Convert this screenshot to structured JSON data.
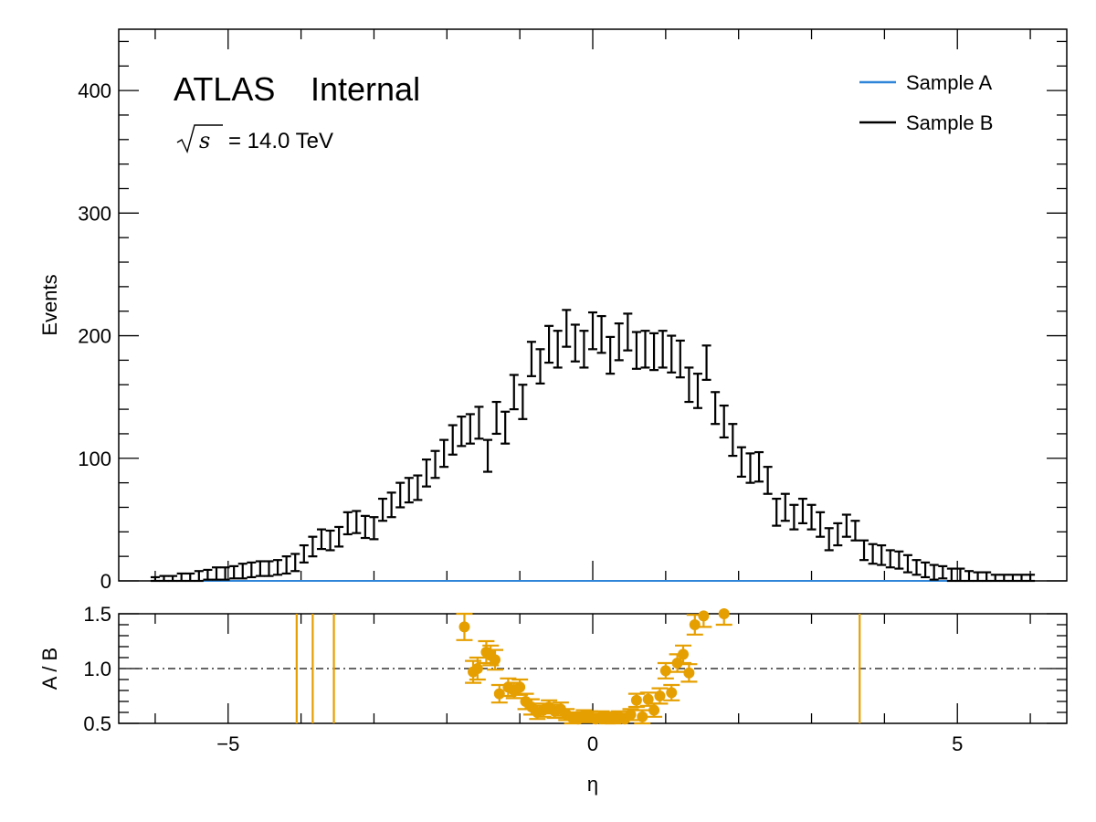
{
  "chart_data": {
    "type": "scatter",
    "xlabel": "η",
    "main": {
      "ylabel": "Events",
      "xlim": [
        -6.5,
        6.5
      ],
      "ylim": [
        0,
        450
      ],
      "yticks": [
        0,
        100,
        200,
        300,
        400
      ],
      "experiment": "ATLAS",
      "status": "Internal",
      "energy_symbol": "s",
      "energy_text": "= 14.0 TeV",
      "series": [
        {
          "name": "Sample A",
          "color": "#2f86d8",
          "kind": "step",
          "x": [
            -6.0,
            6.0
          ],
          "y": [
            0,
            0
          ]
        },
        {
          "name": "Sample B",
          "color": "#000000",
          "kind": "errorbar",
          "x": [
            -6.0,
            -5.88,
            -5.76,
            -5.64,
            -5.52,
            -5.4,
            -5.28,
            -5.16,
            -5.04,
            -4.92,
            -4.8,
            -4.68,
            -4.56,
            -4.44,
            -4.32,
            -4.2,
            -4.08,
            -3.96,
            -3.84,
            -3.72,
            -3.6,
            -3.48,
            -3.36,
            -3.24,
            -3.12,
            -3.0,
            -2.88,
            -2.76,
            -2.64,
            -2.52,
            -2.4,
            -2.28,
            -2.16,
            -2.04,
            -1.92,
            -1.8,
            -1.68,
            -1.56,
            -1.44,
            -1.32,
            -1.2,
            -1.08,
            -0.96,
            -0.84,
            -0.72,
            -0.6,
            -0.48,
            -0.36,
            -0.24,
            -0.12,
            0.0,
            0.12,
            0.24,
            0.36,
            0.48,
            0.6,
            0.72,
            0.84,
            0.96,
            1.08,
            1.2,
            1.32,
            1.44,
            1.56,
            1.68,
            1.8,
            1.92,
            2.04,
            2.16,
            2.28,
            2.4,
            2.52,
            2.64,
            2.76,
            2.88,
            3.0,
            3.12,
            3.24,
            3.36,
            3.48,
            3.6,
            3.72,
            3.84,
            3.96,
            4.08,
            4.2,
            4.32,
            4.44,
            4.56,
            4.68,
            4.8,
            4.92,
            5.04,
            5.16,
            5.28,
            5.4,
            5.52,
            5.64,
            5.76,
            5.88,
            6.0
          ],
          "y": [
            1,
            2,
            2,
            3,
            3,
            4,
            5,
            6,
            6,
            7,
            8,
            9,
            10,
            10,
            11,
            13,
            15,
            22,
            28,
            34,
            33,
            36,
            47,
            48,
            44,
            43,
            58,
            62,
            70,
            74,
            76,
            88,
            95,
            104,
            115,
            122,
            124,
            129,
            102,
            133,
            125,
            154,
            146,
            181,
            175,
            193,
            189,
            206,
            194,
            189,
            204,
            201,
            184,
            195,
            203,
            188,
            189,
            187,
            189,
            185,
            181,
            160,
            155,
            178,
            141,
            130,
            115,
            97,
            92,
            93,
            82,
            56,
            60,
            52,
            57,
            52,
            46,
            34,
            38,
            45,
            41,
            25,
            22,
            21,
            18,
            17,
            14,
            11,
            9,
            7,
            7,
            5,
            5,
            4,
            3,
            3,
            2,
            2,
            2,
            2,
            2
          ],
          "yerr": [
            2,
            2,
            2,
            3,
            3,
            4,
            4,
            5,
            5,
            5,
            6,
            6,
            6,
            6,
            6,
            7,
            7,
            7,
            8,
            8,
            8,
            8,
            9,
            9,
            9,
            9,
            9,
            10,
            10,
            10,
            10,
            11,
            11,
            11,
            12,
            12,
            12,
            13,
            13,
            13,
            13,
            14,
            14,
            14,
            14,
            15,
            15,
            15,
            15,
            15,
            15,
            15,
            15,
            15,
            15,
            15,
            15,
            15,
            15,
            15,
            15,
            14,
            14,
            14,
            13,
            13,
            13,
            12,
            12,
            12,
            11,
            11,
            11,
            10,
            10,
            10,
            10,
            9,
            9,
            9,
            8,
            8,
            8,
            8,
            7,
            7,
            7,
            6,
            6,
            6,
            5,
            5,
            5,
            4,
            4,
            4,
            3,
            3,
            3,
            3,
            3
          ]
        }
      ],
      "legend": {
        "location": "top-right",
        "entries": [
          {
            "label": "Sample A",
            "color": "#2f86d8"
          },
          {
            "label": "Sample B",
            "color": "#000000"
          }
        ]
      }
    },
    "ratio": {
      "ylabel": "A / B",
      "ylim": [
        0.5,
        1.5
      ],
      "yticks": [
        "0.5",
        "1.0",
        "1.5"
      ],
      "xticks": [
        -5,
        0,
        5
      ],
      "xtick_labels": [
        "−5",
        "0",
        "5"
      ],
      "reference_line": 1.0,
      "color": "#e69f00",
      "vertical_lines": [
        -4.06,
        -3.84,
        -3.55,
        3.66
      ],
      "x": [
        -1.76,
        -1.64,
        -1.58,
        -1.46,
        -1.4,
        -1.34,
        -1.28,
        -1.16,
        -1.08,
        -1.0,
        -0.92,
        -0.84,
        -0.76,
        -0.68,
        -0.6,
        -0.52,
        -0.44,
        -0.36,
        -0.28,
        -0.2,
        -0.12,
        -0.04,
        0.04,
        0.12,
        0.2,
        0.28,
        0.36,
        0.44,
        0.52,
        0.6,
        0.68,
        0.76,
        0.84,
        0.92,
        1.0,
        1.08,
        1.16,
        1.24,
        1.32,
        1.4,
        1.52,
        1.8
      ],
      "y": [
        1.38,
        0.97,
        1.0,
        1.15,
        1.12,
        1.08,
        0.77,
        0.83,
        0.8,
        0.83,
        0.7,
        0.65,
        0.6,
        0.62,
        0.65,
        0.61,
        0.63,
        0.58,
        0.55,
        0.54,
        0.57,
        0.56,
        0.54,
        0.56,
        0.55,
        0.55,
        0.56,
        0.54,
        0.58,
        0.71,
        0.56,
        0.72,
        0.62,
        0.75,
        0.98,
        0.78,
        1.05,
        1.13,
        0.96,
        1.4,
        1.48,
        1.5
      ],
      "yerr": [
        0.12,
        0.1,
        0.1,
        0.1,
        0.09,
        0.09,
        0.08,
        0.08,
        0.07,
        0.07,
        0.07,
        0.07,
        0.06,
        0.06,
        0.06,
        0.06,
        0.06,
        0.05,
        0.05,
        0.05,
        0.05,
        0.05,
        0.05,
        0.05,
        0.05,
        0.05,
        0.05,
        0.05,
        0.05,
        0.06,
        0.06,
        0.06,
        0.06,
        0.07,
        0.07,
        0.07,
        0.08,
        0.08,
        0.08,
        0.09,
        0.1,
        0.1
      ]
    }
  }
}
